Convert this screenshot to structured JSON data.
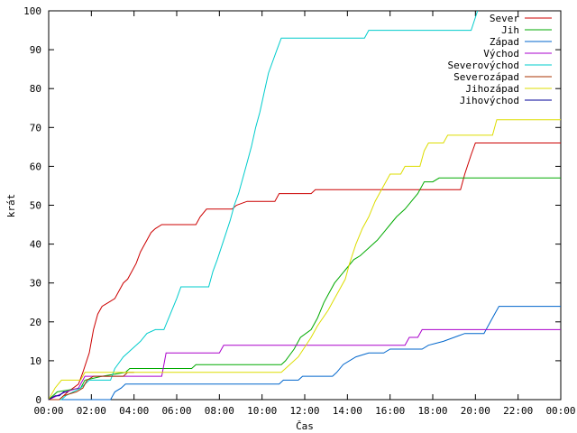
{
  "chart_data": {
    "type": "line",
    "xlabel": "Čas",
    "ylabel": "krát",
    "xlim": [
      0,
      24
    ],
    "ylim": [
      0,
      100
    ],
    "grid": false,
    "legend_position": "top-right",
    "x_ticks": [
      {
        "value": 0,
        "label": "00:00"
      },
      {
        "value": 2,
        "label": "02:00"
      },
      {
        "value": 4,
        "label": "04:00"
      },
      {
        "value": 6,
        "label": "06:00"
      },
      {
        "value": 8,
        "label": "08:00"
      },
      {
        "value": 10,
        "label": "10:00"
      },
      {
        "value": 12,
        "label": "12:00"
      },
      {
        "value": 14,
        "label": "14:00"
      },
      {
        "value": 16,
        "label": "16:00"
      },
      {
        "value": 18,
        "label": "18:00"
      },
      {
        "value": 20,
        "label": "20:00"
      },
      {
        "value": 22,
        "label": "22:00"
      },
      {
        "value": 24,
        "label": "00:00"
      }
    ],
    "y_ticks": [
      {
        "value": 0,
        "label": "0"
      },
      {
        "value": 10,
        "label": "10"
      },
      {
        "value": 20,
        "label": "20"
      },
      {
        "value": 30,
        "label": "30"
      },
      {
        "value": 40,
        "label": "40"
      },
      {
        "value": 50,
        "label": "50"
      },
      {
        "value": 60,
        "label": "60"
      },
      {
        "value": 70,
        "label": "70"
      },
      {
        "value": 80,
        "label": "80"
      },
      {
        "value": 90,
        "label": "90"
      },
      {
        "value": 100,
        "label": "100"
      }
    ],
    "series": [
      {
        "name": "Sever",
        "color": "#cc0000",
        "points": [
          [
            0,
            0
          ],
          [
            0.5,
            0
          ],
          [
            0.9,
            2
          ],
          [
            1.4,
            4
          ],
          [
            1.6,
            7
          ],
          [
            1.9,
            12
          ],
          [
            2.1,
            18
          ],
          [
            2.3,
            22
          ],
          [
            2.5,
            24
          ],
          [
            2.8,
            25
          ],
          [
            3.1,
            26
          ],
          [
            3.3,
            28
          ],
          [
            3.5,
            30
          ],
          [
            3.7,
            31
          ],
          [
            3.9,
            33
          ],
          [
            4.1,
            35
          ],
          [
            4.3,
            38
          ],
          [
            4.5,
            40
          ],
          [
            4.8,
            43
          ],
          [
            5.0,
            44
          ],
          [
            5.3,
            45
          ],
          [
            6.9,
            45
          ],
          [
            7.1,
            47
          ],
          [
            7.4,
            49
          ],
          [
            8.6,
            49
          ],
          [
            8.8,
            50
          ],
          [
            9.3,
            51
          ],
          [
            10.6,
            51
          ],
          [
            10.8,
            53
          ],
          [
            12.3,
            53
          ],
          [
            12.5,
            54
          ],
          [
            19.3,
            54
          ],
          [
            19.5,
            58
          ],
          [
            19.8,
            63
          ],
          [
            20.0,
            66
          ],
          [
            24,
            66
          ]
        ]
      },
      {
        "name": "Jih",
        "color": "#00aa00",
        "points": [
          [
            0,
            0
          ],
          [
            0.4,
            2
          ],
          [
            1.5,
            3
          ],
          [
            1.7,
            5
          ],
          [
            2.5,
            6
          ],
          [
            3.6,
            7
          ],
          [
            3.8,
            8
          ],
          [
            6.7,
            8
          ],
          [
            6.9,
            9
          ],
          [
            10.9,
            9
          ],
          [
            11.1,
            10
          ],
          [
            11.5,
            13
          ],
          [
            11.8,
            16
          ],
          [
            12.3,
            18
          ],
          [
            12.6,
            21
          ],
          [
            12.9,
            25
          ],
          [
            13.1,
            27
          ],
          [
            13.4,
            30
          ],
          [
            13.7,
            32
          ],
          [
            14.0,
            34
          ],
          [
            14.3,
            36
          ],
          [
            14.6,
            37
          ],
          [
            15.0,
            39
          ],
          [
            15.4,
            41
          ],
          [
            15.7,
            43
          ],
          [
            16.0,
            45
          ],
          [
            16.3,
            47
          ],
          [
            16.7,
            49
          ],
          [
            17.0,
            51
          ],
          [
            17.3,
            53
          ],
          [
            17.6,
            56
          ],
          [
            18.0,
            56
          ],
          [
            18.3,
            57
          ],
          [
            24,
            57
          ]
        ]
      },
      {
        "name": "Západ",
        "color": "#0066cc",
        "points": [
          [
            0,
            0
          ],
          [
            2.9,
            0
          ],
          [
            3.1,
            2
          ],
          [
            3.4,
            3
          ],
          [
            3.6,
            4
          ],
          [
            10.8,
            4
          ],
          [
            11.0,
            5
          ],
          [
            11.7,
            5
          ],
          [
            11.9,
            6
          ],
          [
            13.3,
            6
          ],
          [
            13.5,
            7
          ],
          [
            13.8,
            9
          ],
          [
            14.4,
            11
          ],
          [
            15.0,
            12
          ],
          [
            15.7,
            12
          ],
          [
            16.0,
            13
          ],
          [
            17.5,
            13
          ],
          [
            17.8,
            14
          ],
          [
            18.5,
            15
          ],
          [
            19.0,
            16
          ],
          [
            19.5,
            17
          ],
          [
            20.4,
            17
          ],
          [
            20.6,
            19
          ],
          [
            20.9,
            22
          ],
          [
            21.1,
            24
          ],
          [
            24,
            24
          ]
        ]
      },
      {
        "name": "Východ",
        "color": "#aa00cc",
        "points": [
          [
            0,
            0
          ],
          [
            0.8,
            2
          ],
          [
            1.4,
            3
          ],
          [
            1.7,
            6
          ],
          [
            5.3,
            6
          ],
          [
            5.5,
            12
          ],
          [
            8.0,
            12
          ],
          [
            8.2,
            14
          ],
          [
            16.7,
            14
          ],
          [
            16.9,
            16
          ],
          [
            17.3,
            16
          ],
          [
            17.5,
            18
          ],
          [
            24,
            18
          ]
        ]
      },
      {
        "name": "Severovýchod",
        "color": "#00cccc",
        "points": [
          [
            0,
            0
          ],
          [
            0.6,
            0
          ],
          [
            0.8,
            1
          ],
          [
            1.5,
            3
          ],
          [
            1.9,
            5
          ],
          [
            2.9,
            5
          ],
          [
            3.1,
            8
          ],
          [
            3.5,
            11
          ],
          [
            3.9,
            13
          ],
          [
            4.3,
            15
          ],
          [
            4.6,
            17
          ],
          [
            5.0,
            18
          ],
          [
            5.4,
            18
          ],
          [
            5.7,
            22
          ],
          [
            6.0,
            26
          ],
          [
            6.2,
            29
          ],
          [
            7.5,
            29
          ],
          [
            7.7,
            33
          ],
          [
            7.9,
            36
          ],
          [
            8.2,
            41
          ],
          [
            8.5,
            46
          ],
          [
            8.7,
            50
          ],
          [
            8.9,
            53
          ],
          [
            9.1,
            57
          ],
          [
            9.3,
            61
          ],
          [
            9.5,
            65
          ],
          [
            9.7,
            70
          ],
          [
            9.9,
            74
          ],
          [
            10.1,
            79
          ],
          [
            10.3,
            84
          ],
          [
            10.5,
            87
          ],
          [
            10.7,
            90
          ],
          [
            10.9,
            93
          ],
          [
            14.8,
            93
          ],
          [
            15.0,
            95
          ],
          [
            19.8,
            95
          ],
          [
            20.1,
            100
          ]
        ]
      },
      {
        "name": "Severozápad",
        "color": "#aa3300",
        "points": [
          [
            0,
            0
          ],
          [
            0.5,
            0
          ],
          [
            0.7,
            1
          ],
          [
            1.3,
            2
          ],
          [
            1.6,
            3
          ],
          [
            1.8,
            5
          ],
          [
            2.1,
            6
          ],
          [
            3.5,
            6
          ],
          [
            3.7,
            7
          ],
          [
            4.0,
            7
          ]
        ]
      },
      {
        "name": "Jihozápad",
        "color": "#dddd00",
        "points": [
          [
            0,
            0
          ],
          [
            0.3,
            3
          ],
          [
            0.6,
            5
          ],
          [
            1.5,
            5
          ],
          [
            1.7,
            7
          ],
          [
            10.9,
            7
          ],
          [
            11.1,
            8
          ],
          [
            11.7,
            11
          ],
          [
            12.3,
            16
          ],
          [
            12.6,
            19
          ],
          [
            13.1,
            23
          ],
          [
            13.4,
            26
          ],
          [
            13.6,
            28
          ],
          [
            13.9,
            31
          ],
          [
            14.1,
            35
          ],
          [
            14.4,
            40
          ],
          [
            14.7,
            44
          ],
          [
            15.0,
            47
          ],
          [
            15.3,
            51
          ],
          [
            15.5,
            53
          ],
          [
            15.7,
            55
          ],
          [
            16.0,
            58
          ],
          [
            16.5,
            58
          ],
          [
            16.7,
            60
          ],
          [
            17.4,
            60
          ],
          [
            17.6,
            64
          ],
          [
            17.8,
            66
          ],
          [
            18.5,
            66
          ],
          [
            18.7,
            68
          ],
          [
            20.8,
            68
          ],
          [
            21.0,
            72
          ],
          [
            24,
            72
          ]
        ]
      },
      {
        "name": "Jihovýchod",
        "color": "#000099",
        "points": [
          [
            0,
            0
          ],
          [
            0.3,
            1
          ],
          [
            0.5,
            1
          ],
          [
            0.7,
            2
          ],
          [
            0.9,
            2
          ]
        ]
      }
    ]
  }
}
